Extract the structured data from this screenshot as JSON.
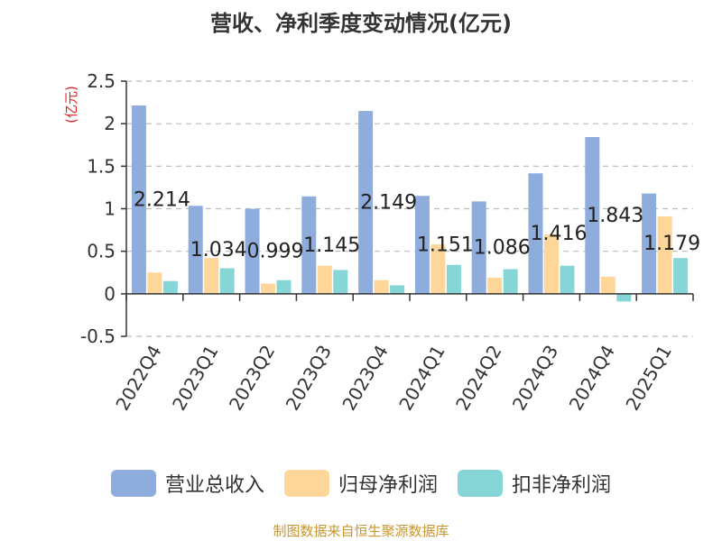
{
  "source_note": "制图数据来自恒生聚源数据库",
  "colors": {
    "revenue": "#8EADDC",
    "net_profit": "#FFD699",
    "deducted_profit": "#87D6D7",
    "unit_label": "#e02020",
    "source_note": "#c8962e"
  },
  "chart_data": {
    "type": "bar",
    "title": "营收、净利季度变动情况(亿元)",
    "ylabel": "(亿元)",
    "xlabel": "",
    "ylim": [
      -0.5,
      2.5
    ],
    "yticks": [
      "-0.5",
      "0",
      "0.5",
      "1",
      "1.5",
      "2",
      "2.5"
    ],
    "grid": true,
    "legend_position": "bottom",
    "categories": [
      "2022Q4",
      "2023Q1",
      "2023Q2",
      "2023Q3",
      "2023Q4",
      "2024Q1",
      "2024Q2",
      "2024Q3",
      "2024Q4",
      "2025Q1"
    ],
    "series": [
      {
        "name": "营业总收入",
        "values": [
          2.214,
          1.034,
          0.999,
          1.145,
          2.149,
          1.151,
          1.086,
          1.416,
          1.843,
          1.179
        ],
        "data_labels": [
          "2.214",
          "1.034",
          "0.999",
          "1.145",
          "2.149",
          "1.151",
          "1.086",
          "1.416",
          "1.843",
          "1.179"
        ]
      },
      {
        "name": "归母净利润",
        "values": [
          0.25,
          0.42,
          0.12,
          0.33,
          0.16,
          0.58,
          0.19,
          0.7,
          0.2,
          0.91
        ]
      },
      {
        "name": "扣非净利润",
        "values": [
          0.15,
          0.3,
          0.16,
          0.28,
          0.1,
          0.34,
          0.29,
          0.33,
          -0.09,
          0.42
        ]
      }
    ]
  }
}
